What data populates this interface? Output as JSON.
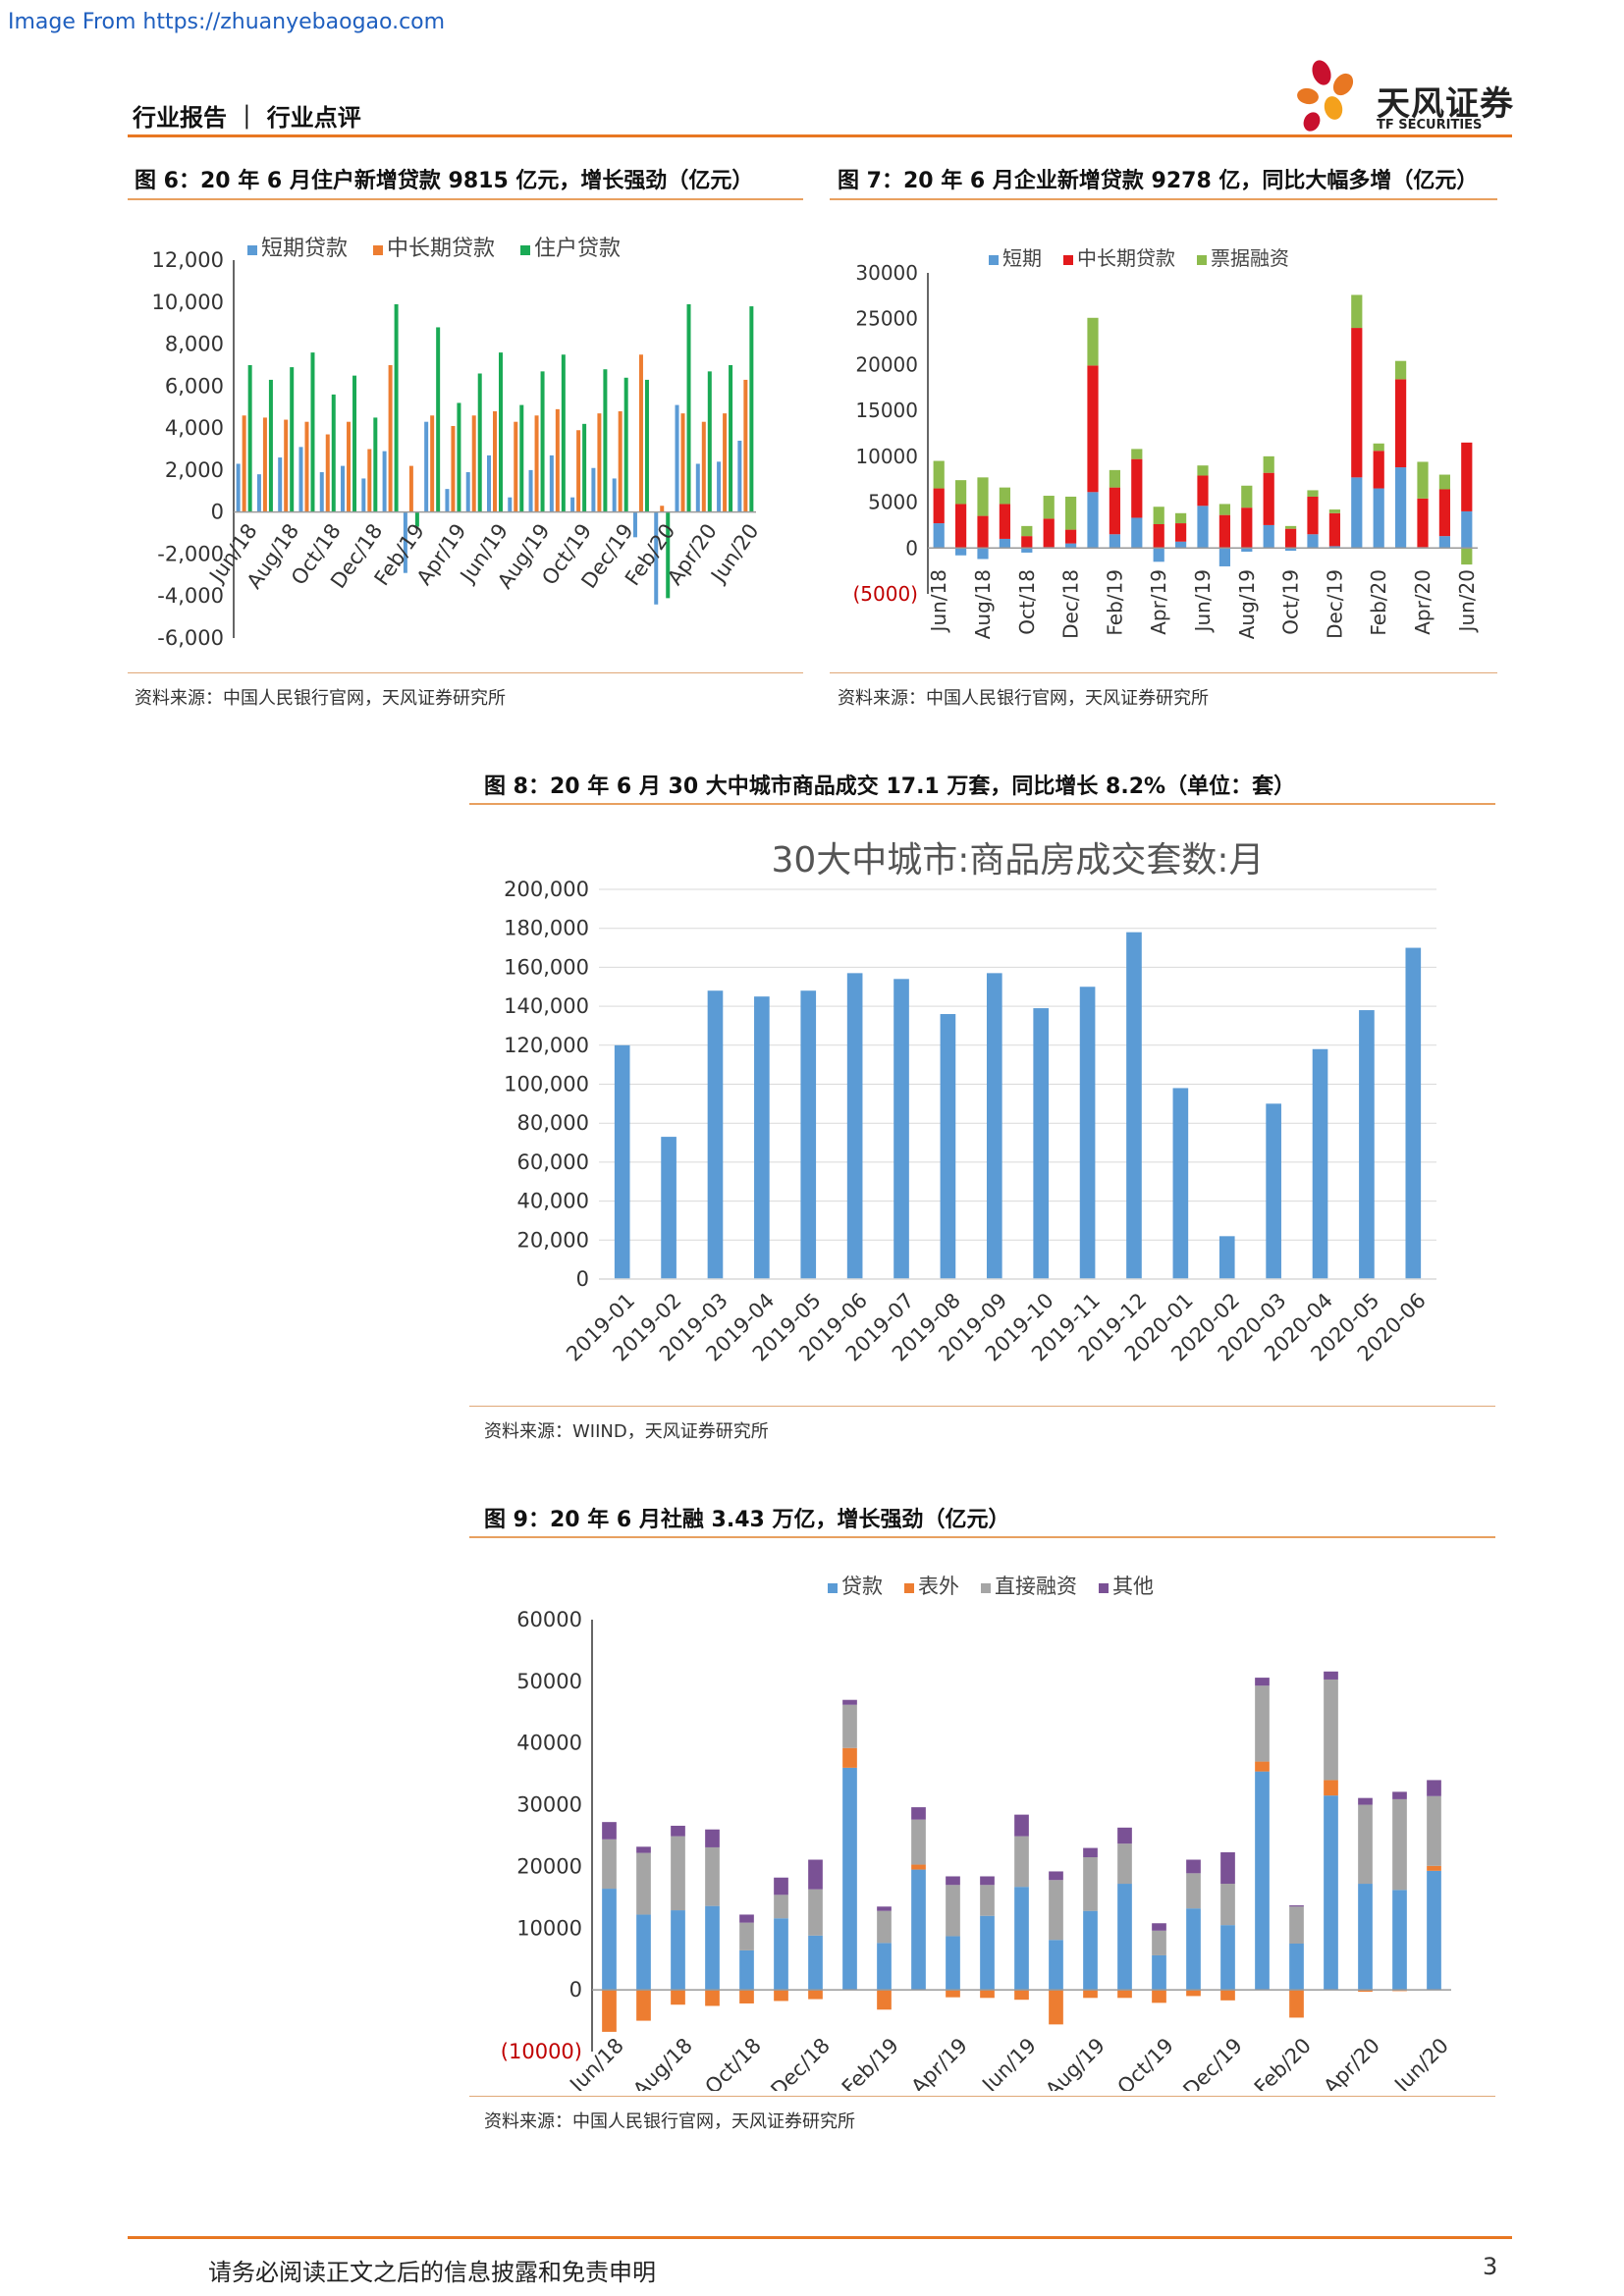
{
  "watermark": "Image From https://zhuanyebaogao.com",
  "header": {
    "title": "行业报告 ｜ 行业点评",
    "logo_cn": "天风证券",
    "logo_en": "TF SECURITIES"
  },
  "fig6": {
    "title": "图 6：20 年 6 月住户新增贷款 9815 亿元，增长强劲（亿元）",
    "source": "资料来源：中国人民银行官网，天风证券研究所"
  },
  "fig7": {
    "title": "图 7：20 年 6 月企业新增贷款 9278 亿，同比大幅多增（亿元）",
    "source": "资料来源：中国人民银行官网，天风证券研究所"
  },
  "fig8": {
    "title": "图 8：20 年 6 月 30 大中城市商品成交 17.1 万套，同比增长 8.2%（单位：套）",
    "source": "资料来源：WIIND，天风证券研究所"
  },
  "fig9": {
    "title": "图 9：20 年 6 月社融 3.43 万亿，增长强劲（亿元）",
    "source": "资料来源：中国人民银行官网，天风证券研究所"
  },
  "footer": {
    "disclaimer": "请务必阅读正文之后的信息披露和免责申明",
    "page": "3"
  },
  "colors": {
    "blue": "#5b9bd5",
    "orange": "#ed7d31",
    "green": "#1aaa55",
    "red": "#e31a1c",
    "lightgreen": "#8dbb4d",
    "gray": "#a5a5a5",
    "purple": "#7a5195",
    "accent": "#e87722"
  },
  "chart_data": [
    {
      "id": "fig6",
      "type": "bar",
      "title": "",
      "ylim": [
        -6000,
        12000
      ],
      "yticks": [
        "12,000",
        "10,000",
        "8,000",
        "6,000",
        "4,000",
        "2,000",
        "0",
        "-2,000",
        "-4,000",
        "-6,000"
      ],
      "ytick_values": [
        12000,
        10000,
        8000,
        6000,
        4000,
        2000,
        0,
        -2000,
        -4000,
        -6000
      ],
      "xtick_labels": [
        "Jun/18",
        "Aug/18",
        "Oct/18",
        "Dec/18",
        "Feb/19",
        "Apr/19",
        "Jun/19",
        "Aug/19",
        "Oct/19",
        "Dec/19",
        "Feb/20",
        "Apr/20",
        "Jun/20"
      ],
      "legend_position": "top",
      "series": [
        {
          "name": "短期贷款",
          "color": "#5b9bd5",
          "values": [
            2300,
            1800,
            2600,
            3100,
            1900,
            2200,
            1600,
            2900,
            -2900,
            4300,
            1100,
            1900,
            2700,
            700,
            2000,
            2700,
            700,
            2100,
            1600,
            -1200,
            -4400,
            5100,
            2300,
            2400,
            3400
          ]
        },
        {
          "name": "中长期贷款",
          "color": "#ed7d31",
          "values": [
            4600,
            4500,
            4400,
            4300,
            3700,
            4300,
            3000,
            7000,
            2200,
            4600,
            4100,
            4600,
            4800,
            4300,
            4600,
            4900,
            3900,
            4700,
            4800,
            7500,
            300,
            4700,
            4300,
            4700,
            6300
          ]
        },
        {
          "name": "住户贷款",
          "color": "#1aaa55",
          "values": [
            7000,
            6300,
            6900,
            7600,
            5600,
            6500,
            4500,
            9900,
            -700,
            8800,
            5200,
            6600,
            7600,
            5100,
            6700,
            7500,
            4200,
            6800,
            6400,
            6300,
            -4100,
            9900,
            6700,
            7000,
            9800
          ]
        }
      ]
    },
    {
      "id": "fig7",
      "type": "bar",
      "title": "",
      "ylim": [
        -5000,
        30000
      ],
      "yticks": [
        "30000",
        "25000",
        "20000",
        "15000",
        "10000",
        "5000",
        "0",
        "(5000)"
      ],
      "ytick_values": [
        30000,
        25000,
        20000,
        15000,
        10000,
        5000,
        0,
        -5000
      ],
      "xtick_labels": [
        "Jun/18",
        "Aug/18",
        "Oct/18",
        "Dec/18",
        "Feb/19",
        "Apr/19",
        "Jun/19",
        "Aug/19",
        "Oct/19",
        "Dec/19",
        "Feb/20",
        "Apr/20",
        "Jun/20"
      ],
      "legend_position": "top",
      "series": [
        {
          "name": "短期",
          "color": "#5b9bd5",
          "values": [
            2700,
            -800,
            -1200,
            1000,
            -500,
            100,
            500,
            6100,
            1500,
            3300,
            -1500,
            700,
            4600,
            -2000,
            -400,
            2500,
            -300,
            1500,
            200,
            7700,
            6500,
            8800,
            100,
            1300,
            4000
          ]
        },
        {
          "name": "中长期贷款",
          "color": "#e31a1c",
          "values": [
            3800,
            4800,
            3500,
            3800,
            1300,
            3100,
            1500,
            13800,
            5100,
            6400,
            2600,
            2000,
            3300,
            3600,
            4400,
            5700,
            2100,
            4100,
            3600,
            16300,
            4100,
            9600,
            5300,
            5100,
            7500
          ]
        },
        {
          "name": "票据融资",
          "color": "#8dbb4d",
          "values": [
            3000,
            2600,
            4200,
            1800,
            1100,
            2500,
            3600,
            5200,
            1900,
            1100,
            1900,
            1100,
            1100,
            1200,
            2400,
            1800,
            300,
            700,
            400,
            3600,
            800,
            2000,
            4000,
            1600,
            -1800
          ]
        }
      ]
    },
    {
      "id": "fig8",
      "type": "bar",
      "title": "30大中城市:商品房成交套数:月",
      "ylim": [
        0,
        200000
      ],
      "yticks": [
        "200,000",
        "180,000",
        "160,000",
        "140,000",
        "120,000",
        "100,000",
        "80,000",
        "60,000",
        "40,000",
        "20,000",
        "0"
      ],
      "ytick_values": [
        200000,
        180000,
        160000,
        140000,
        120000,
        100000,
        80000,
        60000,
        40000,
        20000,
        0
      ],
      "categories": [
        "2019-01",
        "2019-02",
        "2019-03",
        "2019-04",
        "2019-05",
        "2019-06",
        "2019-07",
        "2019-08",
        "2019-09",
        "2019-10",
        "2019-11",
        "2019-12",
        "2020-01",
        "2020-02",
        "2020-03",
        "2020-04",
        "2020-05",
        "2020-06"
      ],
      "series": [
        {
          "name": "",
          "color": "#5b9bd5",
          "values": [
            120000,
            73000,
            148000,
            145000,
            148000,
            157000,
            154000,
            136000,
            157000,
            139000,
            150000,
            178000,
            98000,
            22000,
            90000,
            118000,
            138000,
            170000
          ]
        }
      ]
    },
    {
      "id": "fig9",
      "type": "bar",
      "title": "",
      "ylim": [
        -10000,
        60000
      ],
      "yticks": [
        "60000",
        "50000",
        "40000",
        "30000",
        "20000",
        "10000",
        "0",
        "(10000)"
      ],
      "ytick_values": [
        60000,
        50000,
        40000,
        30000,
        20000,
        10000,
        0,
        -10000
      ],
      "xtick_labels": [
        "Jun/18",
        "Aug/18",
        "Oct/18",
        "Dec/18",
        "Feb/19",
        "Apr/19",
        "Jun/19",
        "Aug/19",
        "Oct/19",
        "Dec/19",
        "Feb/20",
        "Apr/20",
        "Jun/20"
      ],
      "legend_position": "top",
      "series": [
        {
          "name": "贷款",
          "color": "#5b9bd5",
          "values": [
            16400,
            12200,
            12900,
            13600,
            6400,
            11600,
            8800,
            36000,
            7600,
            19500,
            8700,
            12000,
            16700,
            8100,
            12800,
            17200,
            5600,
            13200,
            10500,
            35400,
            7500,
            31500,
            17200,
            16200,
            19300
          ]
        },
        {
          "name": "表外",
          "color": "#ed7d31",
          "values": [
            -6800,
            -5000,
            -2400,
            -2600,
            -2200,
            -1800,
            -1500,
            3200,
            -3200,
            800,
            -1200,
            -1300,
            -1600,
            -5600,
            -1300,
            -1300,
            -2100,
            -1000,
            -1700,
            1600,
            -4500,
            2500,
            -300,
            -200,
            800
          ]
        },
        {
          "name": "直接融资",
          "color": "#a5a5a5",
          "values": [
            8000,
            10000,
            12000,
            9500,
            4500,
            3800,
            7500,
            7000,
            5200,
            7300,
            8300,
            5000,
            8200,
            9700,
            8700,
            6500,
            4000,
            5700,
            6700,
            12300,
            6000,
            16300,
            12800,
            14700,
            11300
          ]
        },
        {
          "name": "其他",
          "color": "#7a5195",
          "values": [
            2800,
            1000,
            1700,
            2900,
            1300,
            2800,
            4800,
            800,
            700,
            2000,
            1400,
            1400,
            3500,
            1400,
            1500,
            2600,
            1200,
            2200,
            5100,
            1300,
            200,
            1300,
            1100,
            1200,
            2600
          ]
        }
      ]
    }
  ]
}
